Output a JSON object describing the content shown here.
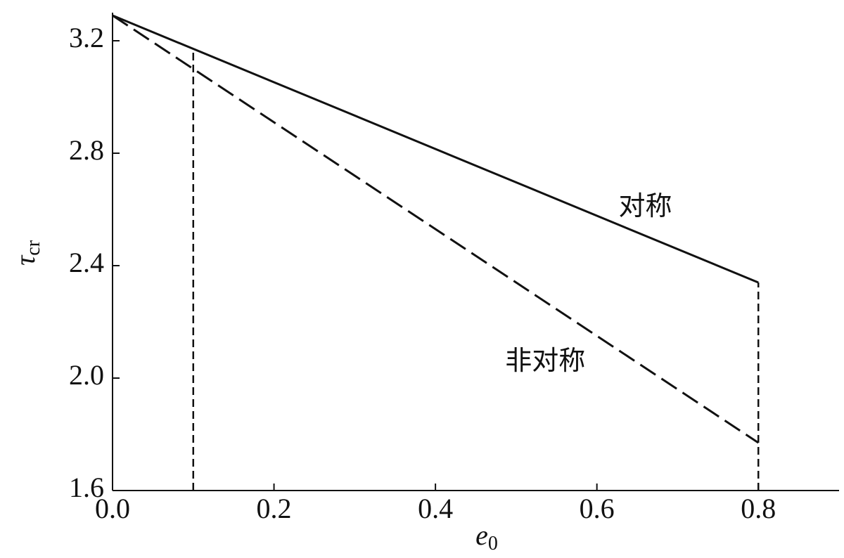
{
  "chart_data": {
    "type": "line",
    "x_label": "e",
    "x_label_sub": "0",
    "y_label": "τ",
    "y_label_sub": "cr",
    "x": [
      0,
      0.8
    ],
    "series": [
      {
        "name": "对称",
        "color": "#111111",
        "style": "solid",
        "values": [
          3.29,
          2.34
        ]
      },
      {
        "name": "非对称",
        "color": "#111111",
        "style": "dashed",
        "values": [
          3.29,
          1.77
        ]
      }
    ],
    "reference_lines": [
      {
        "x": 0.1,
        "y": [
          1.6,
          3.17
        ]
      },
      {
        "x": 0.8,
        "y": [
          1.6,
          2.34
        ]
      }
    ],
    "xlim": [
      0,
      0.9
    ],
    "ylim": [
      1.6,
      3.3
    ],
    "xticks": [
      {
        "value": 0,
        "label": "0.0"
      },
      0.2,
      0.4,
      0.6,
      0.8
    ],
    "yticks": [
      1.6,
      {
        "value": 2,
        "label": "2.0"
      },
      2.4,
      2.8,
      3.2
    ]
  }
}
